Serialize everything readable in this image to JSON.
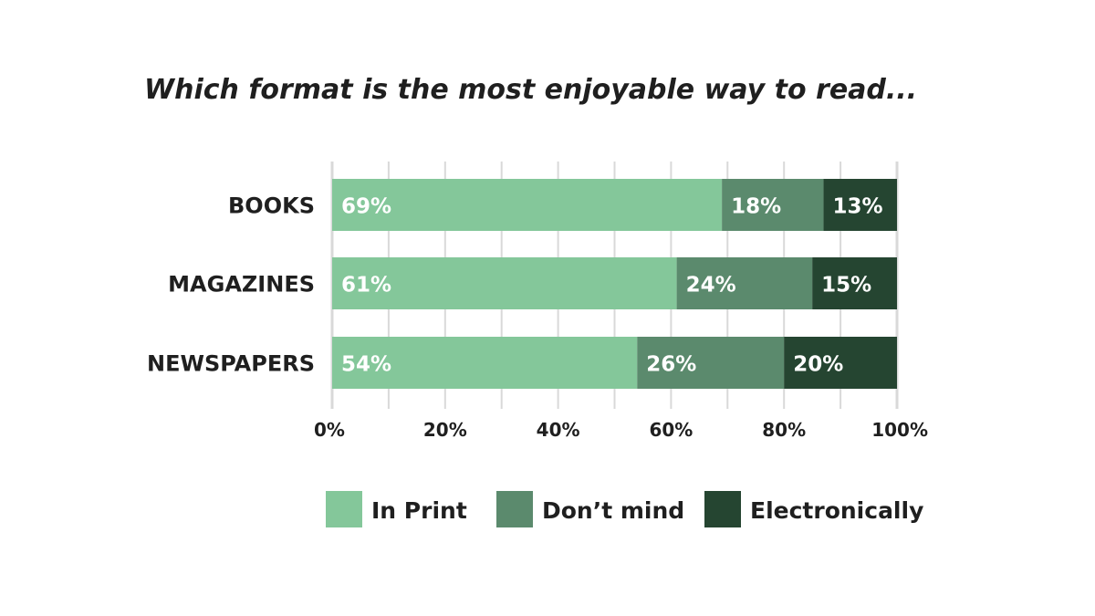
{
  "chart_data": {
    "type": "bar",
    "orientation": "horizontal",
    "stacked": true,
    "title": "Which format is the most enjoyable way to read...",
    "categories": [
      "BOOKS",
      "MAGAZINES",
      "NEWSPAPERS"
    ],
    "series": [
      {
        "name": "In Print",
        "color": "#84c79a",
        "values": [
          69,
          61,
          54
        ]
      },
      {
        "name": "Don’t mind",
        "color": "#5b8a6d",
        "values": [
          18,
          24,
          26
        ]
      },
      {
        "name": "Electronically",
        "color": "#254531",
        "values": [
          13,
          15,
          20
        ]
      }
    ],
    "value_label_suffix": "%",
    "xticks": [
      "0%",
      "20%",
      "40%",
      "60%",
      "80%",
      "100%"
    ],
    "xlim": [
      0,
      100
    ],
    "grid": true,
    "grid_color": "#d9d9d9",
    "legend_position": "bottom"
  }
}
